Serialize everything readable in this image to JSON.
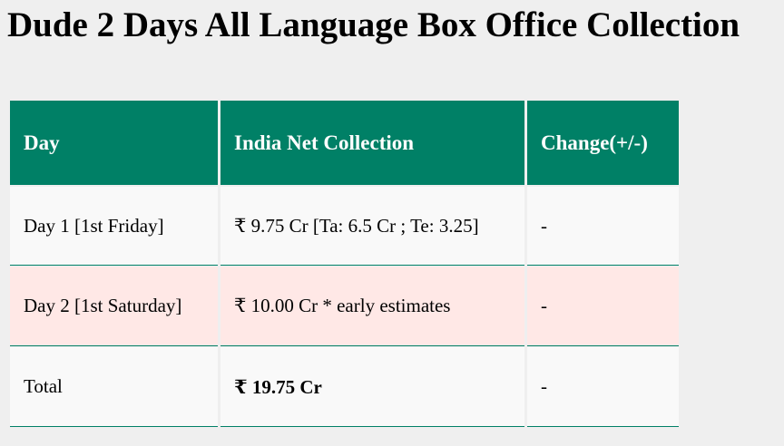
{
  "title": "Dude 2 Days All Language Box Office Collection",
  "table": {
    "headers": [
      "Day",
      "India Net Collection",
      "Change(+/-)"
    ],
    "rows": [
      [
        "Day 1 [1st Friday]",
        "₹ 9.75 Cr [Ta: 6.5 Cr ; Te: 3.25]",
        "-"
      ],
      [
        "Day 2 [1st Saturday]",
        "₹ 10.00 Cr * early estimates",
        "-"
      ],
      [
        "Total",
        "₹ 19.75 Cr",
        "-"
      ]
    ]
  },
  "colors": {
    "header_bg": "#008066",
    "highlight_row": "#ffe8e6"
  }
}
